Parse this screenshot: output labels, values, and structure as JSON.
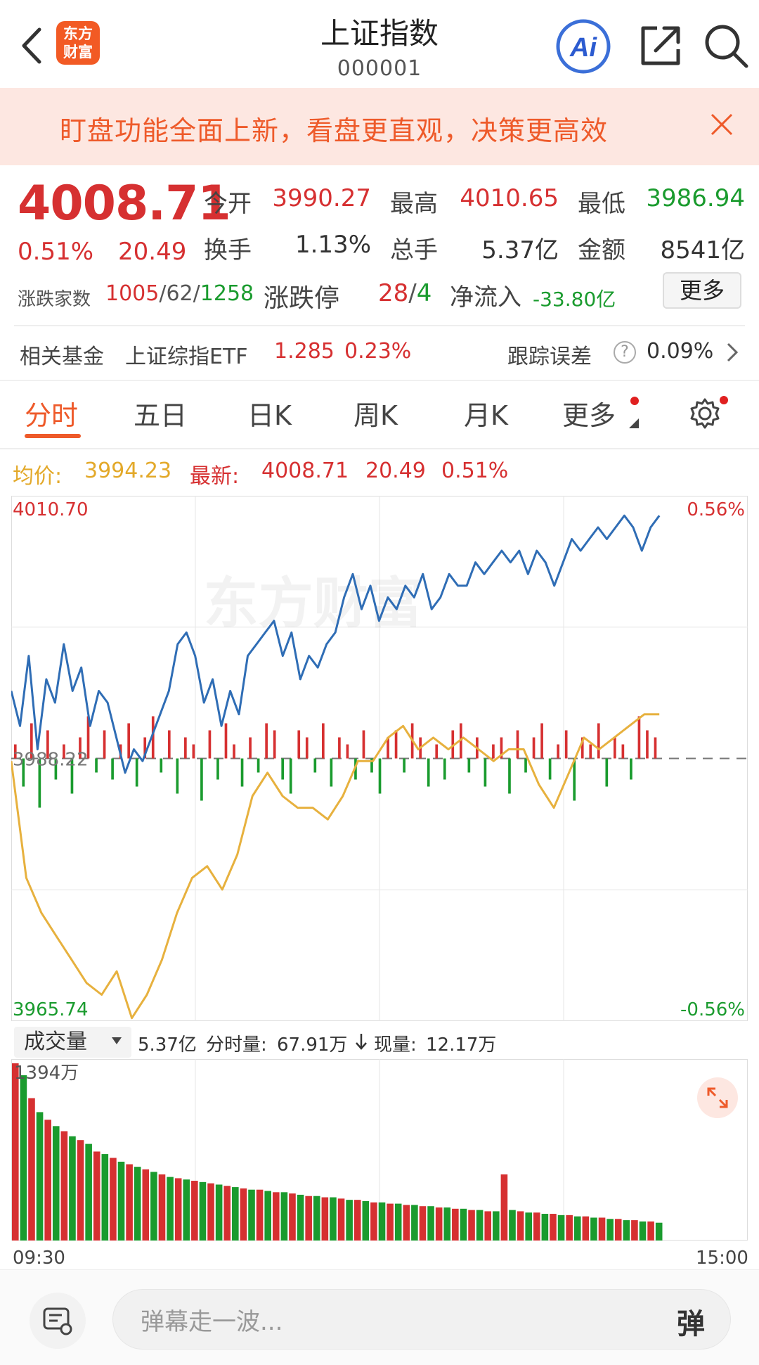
{
  "header": {
    "title": "上证指数",
    "code": "000001",
    "logo_line1": "东方",
    "logo_line2": "财富",
    "ai_label": "Ai"
  },
  "banner": {
    "text": "盯盘功能全面上新，看盘更直观，决策更高效"
  },
  "quote": {
    "price": "4008.71",
    "change_pct": "0.51%",
    "change_val": "20.49",
    "stats": [
      {
        "label": "今开",
        "value": "3990.27",
        "color": "#d63031"
      },
      {
        "label": "最高",
        "value": "4010.65",
        "color": "#d63031"
      },
      {
        "label": "最低",
        "value": "3986.94",
        "color": "#1a9b2e"
      },
      {
        "label": "换手",
        "value": "1.13%",
        "color": "#333333"
      },
      {
        "label": "总手",
        "value": "5.37亿",
        "color": "#333333"
      },
      {
        "label": "金额",
        "value": "8541亿",
        "color": "#333333"
      }
    ],
    "updown_label": "涨跌家数",
    "up_count": "1005",
    "flat_count": "62",
    "down_count": "1258",
    "limit_label": "涨跌停",
    "limit_up": "28",
    "limit_down": "4",
    "flow_label": "净流入",
    "flow_value": "-33.80亿",
    "more_label": "更多"
  },
  "fund": {
    "label": "相关基金",
    "name": "上证综指ETF",
    "price": "1.285",
    "pct": "0.23%",
    "track_label": "跟踪误差",
    "track_value": "0.09%"
  },
  "tabs": [
    "分时",
    "五日",
    "日K",
    "周K",
    "月K",
    "更多"
  ],
  "chart_header": {
    "avg_label": "均价:",
    "avg_value": "3994.23",
    "latest_label": "最新:",
    "latest_value": "4008.71",
    "latest_change": "20.49",
    "latest_pct": "0.51%"
  },
  "chart_data": [
    {
      "type": "line",
      "ylim": [
        3965.74,
        4010.7
      ],
      "y_tick_labels": [
        "4010.70",
        "3988.22",
        "3965.74"
      ],
      "right_tick_labels": [
        "0.56%",
        "-0.56%"
      ],
      "baseline": 3988.22,
      "watermark": "东方财富",
      "series": [
        {
          "color": "#2f6db5",
          "values": [
            3994,
            3991,
            3997,
            3989,
            3995,
            3993,
            3998,
            3994,
            3996,
            3991,
            3994,
            3993,
            3990,
            3987,
            3989,
            3988,
            3990,
            3992,
            3994,
            3998,
            3999,
            3997,
            3993,
            3995,
            3991,
            3994,
            3992,
            3997,
            3998,
            3999,
            4000,
            3997,
            3999,
            3995,
            3997,
            3996,
            3998,
            3999,
            4002,
            4004,
            4001,
            4003,
            4000,
            4002,
            4001,
            4003,
            4002,
            4004,
            4001,
            4002,
            4004,
            4003,
            4003,
            4005,
            4004,
            4005,
            4006,
            4005,
            4006,
            4004,
            4006,
            4005,
            4003,
            4005,
            4007,
            4006,
            4007,
            4008,
            4007,
            4008,
            4009,
            4008,
            4006,
            4008,
            4009
          ],
          "markers": [
            {
              "x": 15,
              "value": 3989
            },
            {
              "x": 34,
              "value": 3999
            },
            {
              "x": 62,
              "value": 4002.5
            },
            {
              "x": 63,
              "value": 4002
            },
            {
              "x": 80,
              "value": 4006
            },
            {
              "x": 93,
              "value": 4009.5
            },
            {
              "x": 97,
              "value": 4008.5
            }
          ]
        },
        {
          "color": "#e7b13e",
          "values": [
            3988,
            3978,
            3975,
            3973,
            3971,
            3969,
            3968,
            3970,
            3966,
            3968,
            3971,
            3975,
            3978,
            3979,
            3977,
            3980,
            3985,
            3987,
            3985,
            3984,
            3984,
            3983,
            3985,
            3988,
            3988,
            3990,
            3991,
            3989,
            3990,
            3989,
            3990,
            3989,
            3988,
            3989,
            3989,
            3986,
            3984,
            3987,
            3990,
            3989,
            3990,
            3991,
            3992,
            3992
          ],
          "markers": []
        }
      ],
      "bars": {
        "up_color": "#d63031",
        "down_color": "#1a9b2e",
        "values": [
          2,
          -4,
          5,
          -7,
          4,
          -3,
          2,
          -5,
          3,
          6,
          -2,
          4,
          -3,
          2,
          5,
          -4,
          3,
          6,
          -2,
          4,
          -5,
          3,
          2,
          -6,
          4,
          -3,
          5,
          2,
          -4,
          3,
          -2,
          5,
          4,
          -3,
          -5,
          4,
          3,
          -2,
          5,
          -4,
          3,
          2,
          -3,
          4,
          -2,
          -5,
          3,
          4,
          -2,
          5,
          3,
          -4,
          2,
          -3,
          4,
          5,
          -2,
          3,
          -4,
          2,
          3,
          -5,
          4,
          -2,
          3,
          5,
          -3,
          2,
          4,
          -6,
          3,
          2,
          5,
          -4,
          3,
          2,
          -3,
          6,
          4,
          3
        ]
      }
    },
    {
      "type": "bar",
      "ylim": [
        0,
        1394
      ],
      "y_tick_labels": [
        "1394万"
      ],
      "x_tick_labels": [
        "09:30",
        "15:00"
      ],
      "up_color": "#d63031",
      "down_color": "#1a9b2e",
      "values": [
        1394,
        1300,
        1120,
        1010,
        950,
        900,
        860,
        820,
        790,
        760,
        700,
        680,
        650,
        620,
        600,
        580,
        560,
        540,
        520,
        500,
        490,
        480,
        470,
        460,
        450,
        440,
        430,
        420,
        410,
        400,
        400,
        390,
        380,
        380,
        370,
        360,
        350,
        350,
        340,
        340,
        330,
        320,
        320,
        310,
        300,
        300,
        290,
        290,
        280,
        280,
        270,
        270,
        260,
        260,
        250,
        250,
        240,
        240,
        230,
        230,
        520,
        240,
        230,
        220,
        220,
        210,
        210,
        200,
        200,
        190,
        190,
        180,
        180,
        170,
        170,
        160,
        160,
        150,
        150,
        140
      ]
    }
  ],
  "volume": {
    "select_label": "成交量",
    "total": "5.37亿",
    "minute_label": "分时量:",
    "minute_value": "67.91万",
    "now_label": "现量:",
    "now_value": "12.17万"
  },
  "bottom": {
    "placeholder": "弹幕走一波...",
    "send_label": "弹"
  }
}
